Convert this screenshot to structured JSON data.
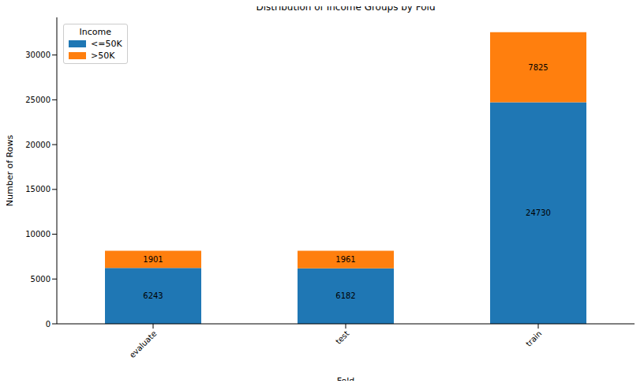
{
  "chart_data": {
    "type": "bar",
    "title": "Distribution of Income Groups by Fold",
    "x_label": "Fold",
    "y_label": "Number of Rows",
    "legend_title": "Income",
    "categories": [
      "evaluate",
      "test",
      "train"
    ],
    "series": [
      {
        "name": "<=50K",
        "color": "#1f77b4",
        "values": [
          6243,
          6182,
          24730
        ]
      },
      {
        "name": ">50K",
        "color": "#ff7f0e",
        "values": [
          1901,
          1961,
          7825
        ]
      }
    ],
    "ylim": [
      0,
      34200
    ],
    "yticks": [
      0,
      5000,
      10000,
      15000,
      20000,
      25000,
      30000
    ],
    "stacked": true,
    "data_labels": true,
    "legend": "upper left",
    "grid": false
  }
}
